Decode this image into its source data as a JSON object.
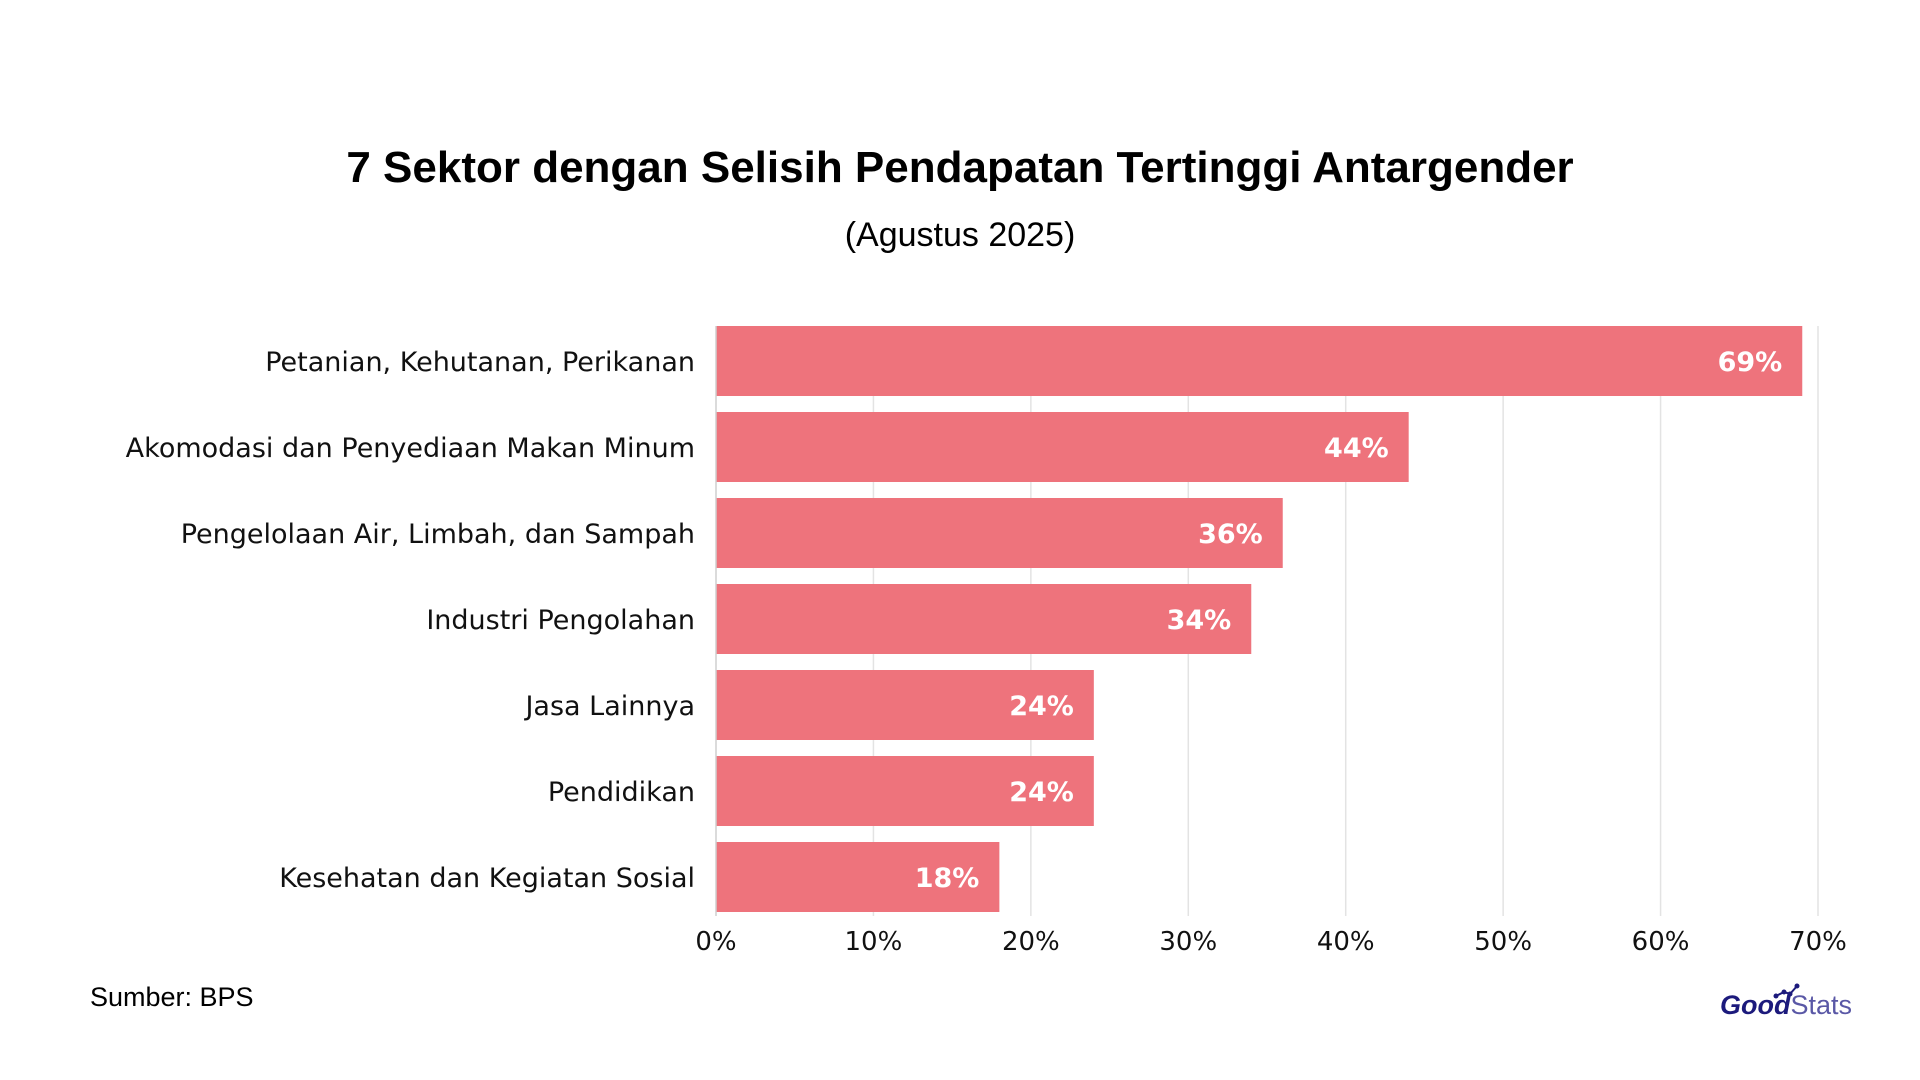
{
  "header": {
    "title": "7 Sektor dengan Selisih Pendapatan Tertinggi Antargender",
    "subtitle": "(Agustus 2025)"
  },
  "footer": {
    "source": "Sumber: BPS",
    "logo_text": "GoodStats"
  },
  "colors": {
    "bar": "#EE737C",
    "bar_label": "#FFFFFF",
    "grid": "#E3E3E3",
    "axis_text": "#111111",
    "logo_good": "#1C1A7C",
    "logo_stats": "#5A58A6"
  },
  "chart_data": {
    "type": "bar",
    "orientation": "horizontal",
    "title": "7 Sektor dengan Selisih Pendapatan Tertinggi Antargender",
    "subtitle": "(Agustus 2025)",
    "categories": [
      "Petanian, Kehutanan, Perikanan",
      "Akomodasi dan Penyediaan Makan Minum",
      "Pengelolaan Air, Limbah, dan Sampah",
      "Industri Pengolahan",
      "Jasa Lainnya",
      "Pendidikan",
      "Kesehatan dan Kegiatan Sosial"
    ],
    "values": [
      69,
      44,
      36,
      34,
      24,
      24,
      18
    ],
    "data_labels": [
      "69%",
      "44%",
      "36%",
      "34%",
      "24%",
      "24%",
      "18%"
    ],
    "xlim": [
      0,
      70
    ],
    "xticks": [
      0,
      10,
      20,
      30,
      40,
      50,
      60,
      70
    ],
    "xtick_labels": [
      "0%",
      "10%",
      "20%",
      "30%",
      "40%",
      "50%",
      "60%",
      "70%"
    ],
    "grid": true,
    "legend": false
  }
}
